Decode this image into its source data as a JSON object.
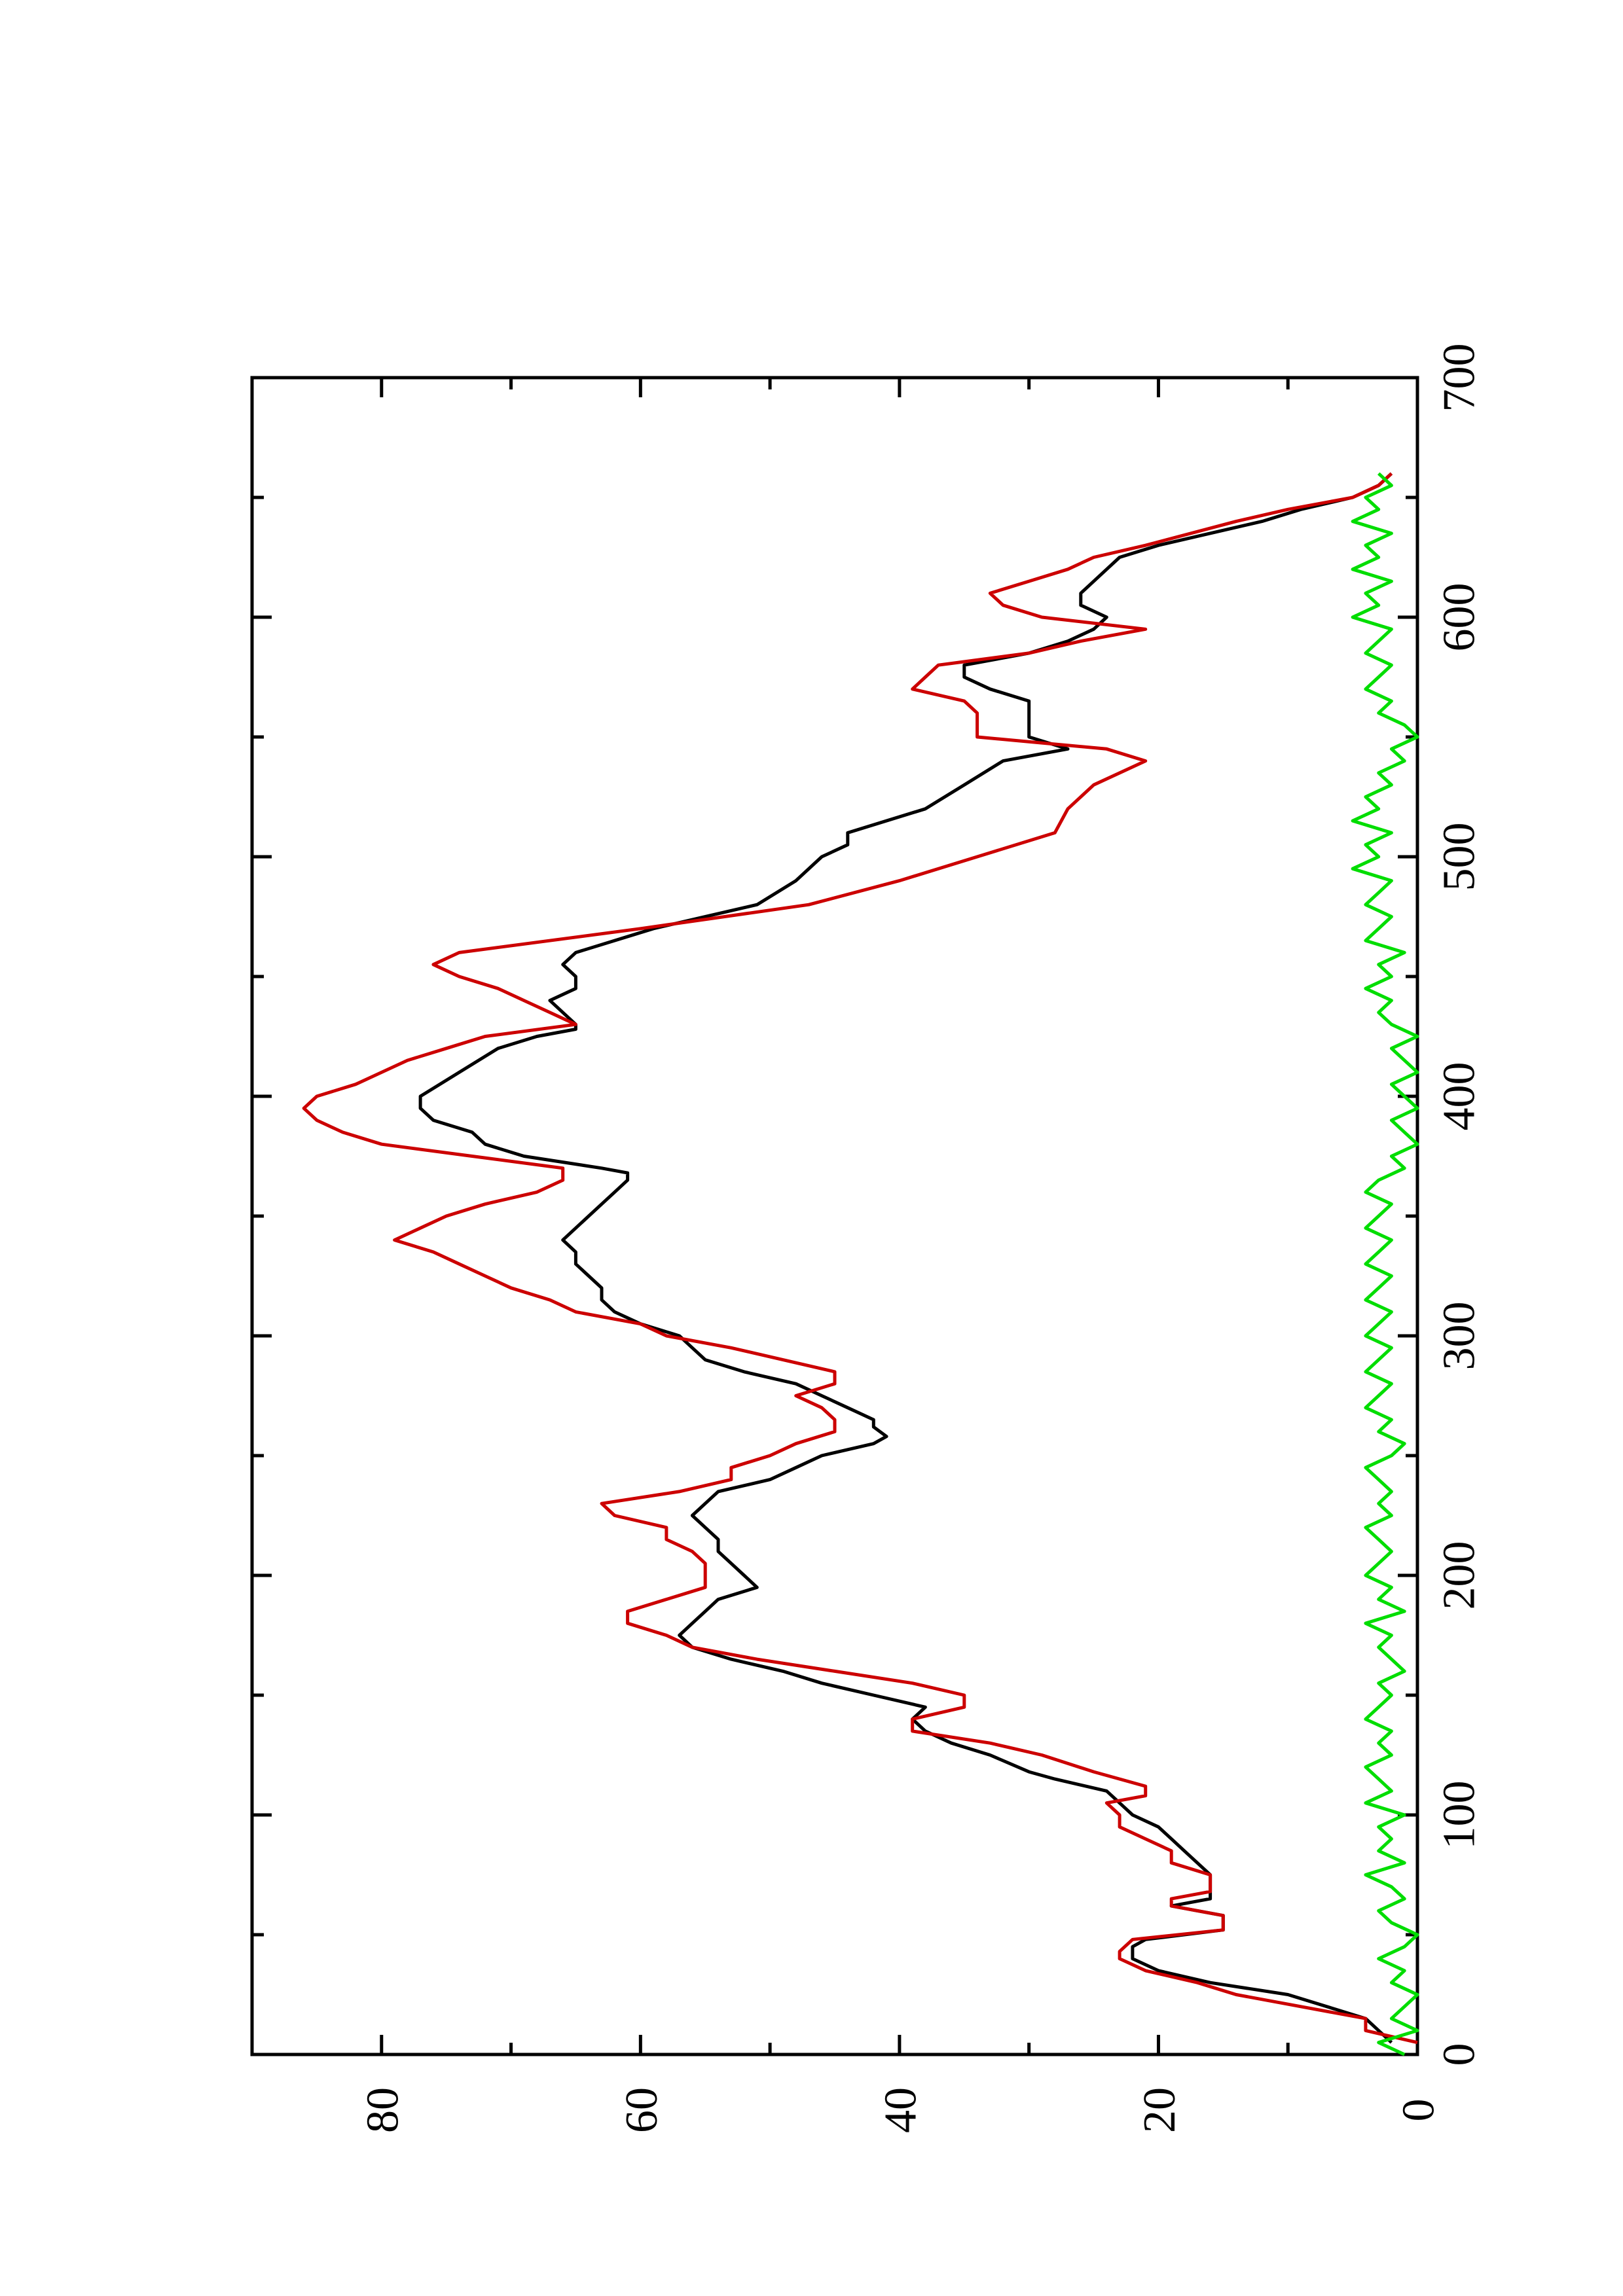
{
  "chart_data": {
    "type": "line",
    "orientation": "rotated-90-ccw",
    "title": "",
    "xlabel": "",
    "ylabel": "",
    "xlim": [
      0,
      700
    ],
    "ylim": [
      0,
      90
    ],
    "x_ticks": [
      0,
      100,
      200,
      300,
      400,
      500,
      600,
      700
    ],
    "y_ticks": [
      0,
      20,
      40,
      60,
      80
    ],
    "grid": false,
    "legend": "none",
    "series": [
      {
        "color": "#000000",
        "x": [
          5,
          15,
          25,
          30,
          35,
          40,
          45,
          48,
          52,
          55,
          58,
          62,
          65,
          70,
          75,
          80,
          85,
          90,
          95,
          100,
          105,
          110,
          115,
          118,
          125,
          130,
          135,
          140,
          145,
          150,
          155,
          160,
          165,
          170,
          175,
          180,
          185,
          190,
          195,
          200,
          205,
          210,
          215,
          220,
          225,
          230,
          235,
          240,
          245,
          250,
          255,
          258,
          262,
          265,
          270,
          275,
          280,
          285,
          290,
          295,
          300,
          305,
          310,
          315,
          320,
          325,
          330,
          335,
          340,
          345,
          350,
          355,
          360,
          365,
          368,
          370,
          375,
          380,
          385,
          390,
          395,
          400,
          410,
          420,
          425,
          428,
          430,
          435,
          440,
          445,
          450,
          455,
          460,
          470,
          480,
          490,
          500,
          505,
          510,
          520,
          530,
          540,
          545,
          550,
          560,
          565,
          570,
          575,
          580,
          585,
          590,
          595,
          600,
          605,
          610,
          615,
          620,
          625,
          630,
          640,
          645,
          650,
          655,
          660
        ],
        "y": [
          2,
          4,
          10,
          16,
          20,
          22,
          22,
          21,
          15,
          15,
          15,
          19,
          16,
          16,
          16,
          17,
          18,
          19,
          20,
          22,
          23,
          24,
          28,
          30,
          33,
          36,
          38,
          39,
          38,
          42,
          46,
          49,
          53,
          56,
          57,
          56,
          55,
          54,
          51,
          52,
          53,
          54,
          54,
          55,
          56,
          55,
          54,
          50,
          48,
          46,
          42,
          41,
          42,
          42,
          44,
          46,
          48,
          52,
          55,
          56,
          57,
          60,
          62,
          63,
          63,
          64,
          65,
          65,
          66,
          65,
          64,
          63,
          62,
          61,
          61,
          63,
          69,
          72,
          73,
          76,
          77,
          77,
          74,
          71,
          68,
          65,
          65,
          66,
          67,
          65,
          65,
          66,
          65,
          59,
          51,
          48,
          46,
          44,
          44,
          38,
          35,
          32,
          27,
          30,
          30,
          30,
          33,
          35,
          35,
          30,
          27,
          25,
          24,
          26,
          26,
          25,
          24,
          23,
          20,
          12,
          9,
          5,
          3,
          2
        ]
      },
      {
        "color": "#cc0000",
        "x": [
          5,
          10,
          15,
          20,
          25,
          30,
          35,
          40,
          43,
          48,
          52,
          58,
          62,
          65,
          68,
          72,
          75,
          80,
          85,
          90,
          95,
          100,
          105,
          108,
          112,
          118,
          125,
          130,
          135,
          140,
          145,
          150,
          155,
          160,
          165,
          170,
          175,
          180,
          185,
          190,
          195,
          200,
          205,
          210,
          215,
          220,
          225,
          230,
          235,
          240,
          245,
          250,
          255,
          260,
          265,
          270,
          275,
          280,
          285,
          290,
          295,
          300,
          305,
          310,
          315,
          320,
          325,
          330,
          335,
          340,
          345,
          350,
          355,
          360,
          365,
          370,
          375,
          380,
          385,
          390,
          395,
          400,
          405,
          410,
          415,
          420,
          425,
          430,
          435,
          440,
          445,
          450,
          455,
          460,
          470,
          480,
          490,
          500,
          510,
          520,
          530,
          540,
          545,
          550,
          560,
          565,
          570,
          575,
          580,
          585,
          590,
          595,
          600,
          605,
          610,
          615,
          620,
          625,
          630,
          640,
          645,
          650,
          655,
          660
        ],
        "y": [
          0,
          4,
          4,
          9,
          14,
          17,
          21,
          23,
          23,
          22,
          15,
          15,
          19,
          19,
          16,
          16,
          16,
          19,
          19,
          21,
          23,
          23,
          24,
          21,
          21,
          25,
          29,
          33,
          39,
          39,
          35,
          35,
          39,
          45,
          51,
          56,
          58,
          61,
          61,
          58,
          55,
          55,
          55,
          56,
          58,
          58,
          62,
          63,
          57,
          53,
          53,
          50,
          48,
          45,
          45,
          46,
          48,
          45,
          45,
          49,
          53,
          58,
          60,
          65,
          67,
          70,
          72,
          74,
          76,
          79,
          77,
          75,
          72,
          68,
          66,
          66,
          73,
          80,
          83,
          85,
          86,
          85,
          82,
          80,
          78,
          75,
          72,
          65,
          67,
          69,
          71,
          74,
          76,
          74,
          60,
          47,
          40,
          34,
          28,
          27,
          25,
          21,
          24,
          34,
          34,
          35,
          39,
          38,
          37,
          30,
          26,
          21,
          29,
          32,
          33,
          30,
          27,
          25,
          21,
          14,
          10,
          5,
          3,
          2
        ]
      },
      {
        "color": "#00dd00",
        "x": [
          0,
          5,
          10,
          15,
          20,
          25,
          30,
          35,
          40,
          45,
          50,
          55,
          60,
          65,
          70,
          75,
          80,
          85,
          90,
          95,
          100,
          105,
          110,
          115,
          120,
          125,
          130,
          135,
          140,
          145,
          150,
          155,
          160,
          165,
          170,
          175,
          180,
          185,
          190,
          195,
          200,
          205,
          210,
          215,
          220,
          225,
          230,
          235,
          240,
          245,
          250,
          255,
          260,
          265,
          270,
          275,
          280,
          285,
          290,
          295,
          300,
          305,
          310,
          315,
          320,
          325,
          330,
          335,
          340,
          345,
          350,
          355,
          360,
          365,
          370,
          375,
          380,
          385,
          390,
          395,
          400,
          405,
          410,
          415,
          420,
          425,
          430,
          435,
          440,
          445,
          450,
          455,
          460,
          465,
          470,
          475,
          480,
          485,
          490,
          495,
          500,
          505,
          510,
          515,
          520,
          525,
          530,
          535,
          540,
          545,
          550,
          555,
          560,
          565,
          570,
          575,
          580,
          585,
          590,
          595,
          600,
          605,
          610,
          615,
          620,
          625,
          630,
          635,
          640,
          645,
          650,
          655,
          660
        ],
        "y": [
          1,
          3,
          0,
          2,
          1,
          0,
          2,
          1,
          3,
          1,
          0,
          2,
          3,
          1,
          2,
          4,
          1,
          3,
          2,
          3,
          1,
          4,
          2,
          3,
          4,
          2,
          3,
          2,
          4,
          3,
          2,
          3,
          1,
          2,
          3,
          2,
          4,
          1,
          3,
          2,
          4,
          3,
          2,
          3,
          4,
          2,
          3,
          2,
          3,
          4,
          2,
          1,
          3,
          2,
          4,
          3,
          2,
          4,
          3,
          2,
          4,
          3,
          2,
          4,
          3,
          2,
          4,
          3,
          2,
          4,
          3,
          2,
          4,
          3,
          1,
          2,
          0,
          1,
          2,
          0,
          1,
          2,
          0,
          1,
          2,
          0,
          2,
          3,
          2,
          4,
          2,
          3,
          1,
          4,
          3,
          2,
          4,
          3,
          2,
          5,
          3,
          4,
          2,
          5,
          3,
          4,
          2,
          3,
          1,
          2,
          0,
          1,
          3,
          2,
          4,
          3,
          2,
          4,
          3,
          2,
          5,
          3,
          4,
          2,
          5,
          3,
          4,
          2,
          5,
          3,
          4,
          2,
          3
        ]
      }
    ]
  }
}
